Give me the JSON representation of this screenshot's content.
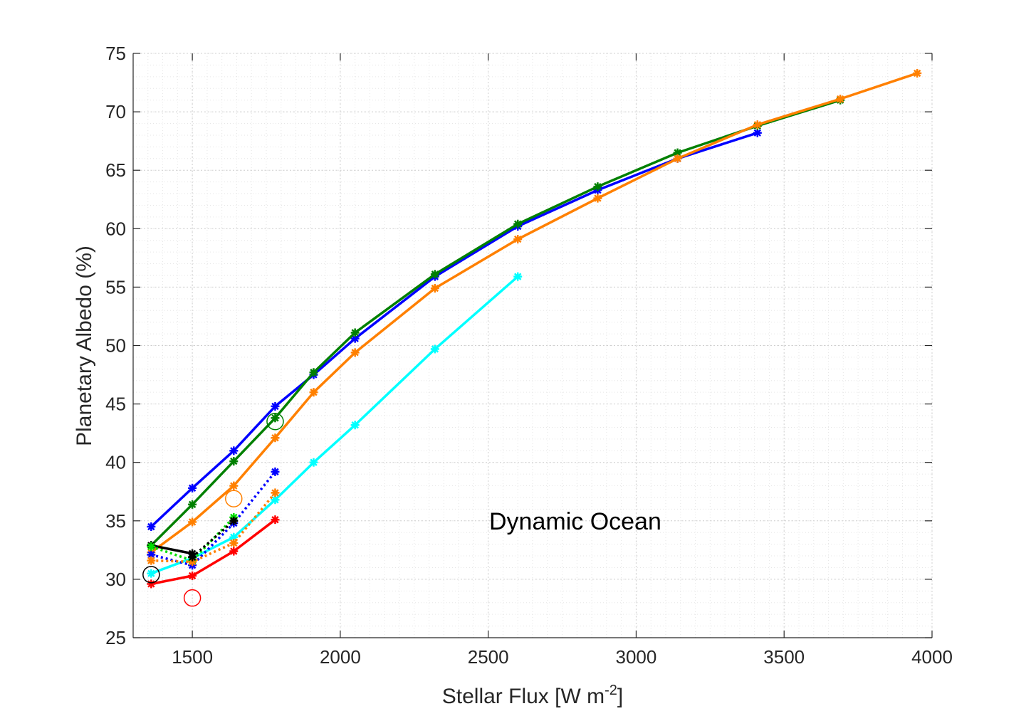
{
  "chart_data": {
    "type": "line",
    "title": "",
    "xlabel": "Stellar Flux [W m",
    "xlabel_superscript": "-2",
    "xlabel_suffix": "]",
    "ylabel": "Planetary Albedo (%)",
    "xlim": [
      1300,
      4000
    ],
    "ylim": [
      25,
      75
    ],
    "xticks": [
      1500,
      2000,
      2500,
      3000,
      3500,
      4000
    ],
    "yticks": [
      25,
      30,
      35,
      40,
      45,
      50,
      55,
      60,
      65,
      70,
      75
    ],
    "grid": "major and minor, dotted",
    "annotation": "Dynamic Ocean",
    "series": [
      {
        "name": "blue",
        "color": "#0000ff",
        "style": "solid",
        "x": [
          1361,
          1500,
          1640,
          1780,
          1910,
          2050,
          2320,
          2600,
          2870,
          3140,
          3410
        ],
        "y": [
          34.5,
          37.8,
          41.0,
          44.8,
          47.5,
          50.6,
          55.9,
          60.2,
          63.3,
          66.0,
          68.2
        ]
      },
      {
        "name": "green",
        "color": "#008000",
        "style": "solid",
        "x": [
          1361,
          1500,
          1640,
          1780,
          1910,
          2050,
          2320,
          2600,
          2870,
          3140,
          3410,
          3690
        ],
        "y": [
          32.9,
          36.4,
          40.1,
          43.8,
          47.7,
          51.1,
          56.1,
          60.4,
          63.6,
          66.5,
          68.8,
          71.0
        ]
      },
      {
        "name": "orange",
        "color": "#ff8000",
        "style": "solid",
        "x": [
          1361,
          1500,
          1640,
          1780,
          1910,
          2050,
          2320,
          2600,
          2870,
          3140,
          3410,
          3690,
          3950
        ],
        "y": [
          32.3,
          34.9,
          38.0,
          42.1,
          46.0,
          49.4,
          54.9,
          59.1,
          62.6,
          66.0,
          68.9,
          71.1,
          73.3
        ]
      },
      {
        "name": "cyan",
        "color": "#00ffff",
        "style": "solid",
        "x": [
          1361,
          1500,
          1640,
          1780,
          1910,
          2050,
          2320,
          2600
        ],
        "y": [
          30.5,
          31.8,
          33.6,
          36.8,
          40.0,
          43.2,
          49.7,
          55.9
        ]
      },
      {
        "name": "red",
        "color": "#ff0000",
        "style": "solid",
        "x": [
          1361,
          1500,
          1640,
          1780
        ],
        "y": [
          29.6,
          30.3,
          32.4,
          35.1
        ]
      },
      {
        "name": "black",
        "color": "#000000",
        "style": "solid",
        "x": [
          1361,
          1500
        ],
        "y": [
          32.9,
          32.2
        ]
      },
      {
        "name": "blue-dotted",
        "color": "#0000ff",
        "style": "dotted",
        "x": [
          1361,
          1500,
          1640,
          1780
        ],
        "y": [
          32.1,
          31.2,
          34.8,
          39.2
        ]
      },
      {
        "name": "green-dotted",
        "color": "#00e000",
        "style": "dotted",
        "x": [
          1361,
          1500,
          1640
        ],
        "y": [
          32.8,
          31.6,
          35.3
        ]
      },
      {
        "name": "orange-dotted",
        "color": "#ff8000",
        "style": "dotted",
        "x": [
          1361,
          1500,
          1640,
          1780
        ],
        "y": [
          31.6,
          31.5,
          33.1,
          37.4
        ]
      },
      {
        "name": "black-dotted",
        "color": "#000000",
        "style": "dotted",
        "x": [
          1500,
          1640
        ],
        "y": [
          31.9,
          35.0
        ]
      }
    ],
    "open_circles": [
      {
        "color": "#000000",
        "x": 1361,
        "y": 30.4
      },
      {
        "color": "#ff0000",
        "x": 1500,
        "y": 28.4
      },
      {
        "color": "#ff8000",
        "x": 1640,
        "y": 36.9
      },
      {
        "color": "#008000",
        "x": 1780,
        "y": 43.5
      }
    ]
  }
}
